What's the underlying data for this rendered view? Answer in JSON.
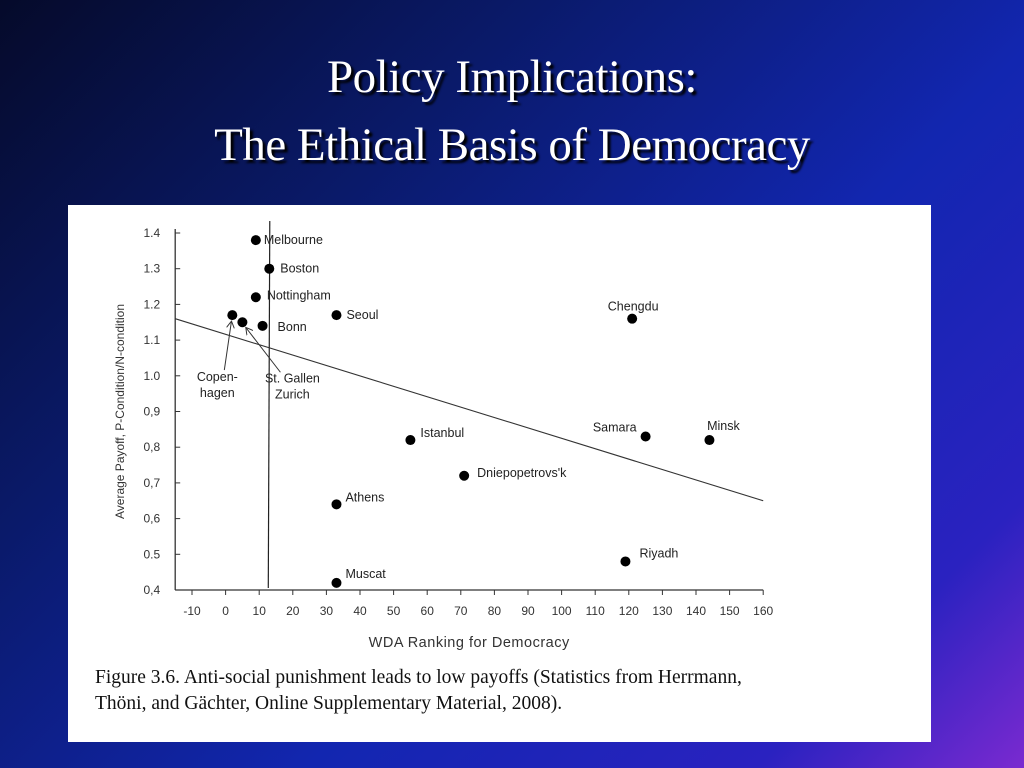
{
  "slide": {
    "title_line1": "Policy Implications:",
    "title_line2": "The Ethical Basis of Democracy"
  },
  "caption": {
    "line1": "Figure 3.6. Anti-social punishment leads to low payoffs (Statistics from Herrmann,",
    "line2": "Thöni, and Gächter, Online Supplementary Material, 2008)."
  },
  "chart_data": {
    "type": "scatter",
    "xlabel": "WDA Ranking for Democracy",
    "ylabel": "Average Payoff, P-Condition/N-condition",
    "xlim": [
      -15,
      160
    ],
    "ylim": [
      0.4,
      1.4
    ],
    "x_ticks": [
      "-10",
      "0",
      "10",
      "20",
      "30",
      "40",
      "50",
      "60",
      "70",
      "80",
      "90",
      "100",
      "110",
      "120",
      "130",
      "140",
      "150",
      "160"
    ],
    "x_tick_values": [
      -10,
      0,
      10,
      20,
      30,
      40,
      50,
      60,
      70,
      80,
      90,
      100,
      110,
      120,
      130,
      140,
      150,
      160
    ],
    "y_ticks": [
      "1.4",
      "1.3",
      "1.2",
      "1.1",
      "1.0",
      "0,9",
      "0,8",
      "0,7",
      "0,6",
      "0.5",
      "0,4"
    ],
    "y_tick_values": [
      1.4,
      1.3,
      1.2,
      1.1,
      1.0,
      0.9,
      0.8,
      0.7,
      0.6,
      0.5,
      0.4
    ],
    "grid": false,
    "points": [
      {
        "label": "Melbourne",
        "x": 9,
        "y": 1.38
      },
      {
        "label": "Boston",
        "x": 13,
        "y": 1.3
      },
      {
        "label": "Nottingham",
        "x": 9,
        "y": 1.22
      },
      {
        "label": "Copen-|hagen",
        "x": 2,
        "y": 1.17
      },
      {
        "label": "St. Gallen|Zurich",
        "x": 5,
        "y": 1.15
      },
      {
        "label": "Bonn",
        "x": 11,
        "y": 1.14
      },
      {
        "label": "Seoul",
        "x": 33,
        "y": 1.17
      },
      {
        "label": "Chengdu",
        "x": 121,
        "y": 1.16
      },
      {
        "label": "Istanbul",
        "x": 55,
        "y": 0.82
      },
      {
        "label": "Samara",
        "x": 125,
        "y": 0.83
      },
      {
        "label": "Minsk",
        "x": 144,
        "y": 0.82
      },
      {
        "label": "Dniepopetrovs'k",
        "x": 71,
        "y": 0.72
      },
      {
        "label": "Athens",
        "x": 33,
        "y": 0.64
      },
      {
        "label": "Riyadh",
        "x": 119,
        "y": 0.48
      },
      {
        "label": "Muscat",
        "x": 33,
        "y": 0.42
      }
    ],
    "vertical_line": {
      "x": 13
    },
    "trend_line": {
      "x": [
        -15,
        160
      ],
      "y": [
        1.16,
        0.65
      ]
    },
    "marker_color": "#000000"
  }
}
